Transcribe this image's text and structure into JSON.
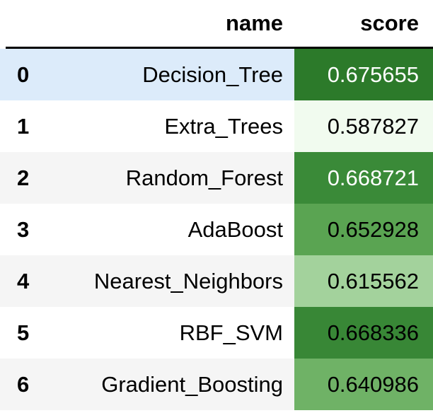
{
  "table": {
    "columns": [
      "",
      "name",
      "score"
    ],
    "rows": [
      {
        "index": "0",
        "name": "Decision_Tree",
        "score": "0.675655",
        "bg": "#2c7a2a",
        "fg": "#ffffff"
      },
      {
        "index": "1",
        "name": "Extra_Trees",
        "score": "0.587827",
        "bg": "#f1fbef",
        "fg": "#000000"
      },
      {
        "index": "2",
        "name": "Random_Forest",
        "score": "0.668721",
        "bg": "#3a8a38",
        "fg": "#ffffff"
      },
      {
        "index": "3",
        "name": "AdaBoost",
        "score": "0.652928",
        "bg": "#5aa452",
        "fg": "#000000"
      },
      {
        "index": "4",
        "name": "Nearest_Neighbors",
        "score": "0.615562",
        "bg": "#a3d29c",
        "fg": "#000000"
      },
      {
        "index": "5",
        "name": "RBF_SVM",
        "score": "0.668336",
        "bg": "#388736",
        "fg": "#000000"
      },
      {
        "index": "6",
        "name": "Gradient_Boosting",
        "score": "0.640986",
        "bg": "#6fb266",
        "fg": "#000000"
      }
    ]
  }
}
